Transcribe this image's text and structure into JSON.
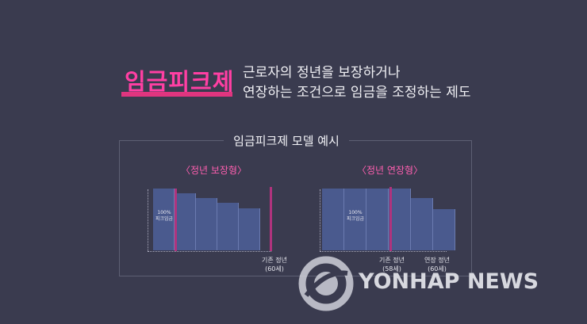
{
  "heading": {
    "title": "임금피크제",
    "desc_line1": "근로자의 정년을 보장하거나",
    "desc_line2": "연장하는 조건으로 임금을 조정하는 제도"
  },
  "panel": {
    "label": "임금피크제 모델 예시"
  },
  "chart_data": [
    {
      "type": "bar",
      "title": "〈정년 보장형〉",
      "values": [
        100,
        92,
        85,
        77,
        68
      ],
      "note_line1": "100%",
      "note_line2": "피크임금",
      "axis_label_line1": "기존 정년",
      "axis_label_line2": "(60세)"
    },
    {
      "type": "bar",
      "title": "〈정년 연장형〉",
      "values": [
        100,
        100,
        100,
        100,
        84,
        67
      ],
      "note_line1": "100%",
      "note_line2": "피크임금",
      "axis_labels": [
        {
          "line1": "기존 정년",
          "line2": "(58세)"
        },
        {
          "line1": "연장 정년",
          "line2": "(60세)"
        }
      ]
    }
  ],
  "watermark": {
    "text": "YONHAP NEWS",
    "icon": "yonhap-logo-icon"
  },
  "colors": {
    "accent": "#ff3fa3",
    "bar": "#4a5a8e",
    "marker": "#b0337d",
    "background": "#3a3b4f"
  }
}
